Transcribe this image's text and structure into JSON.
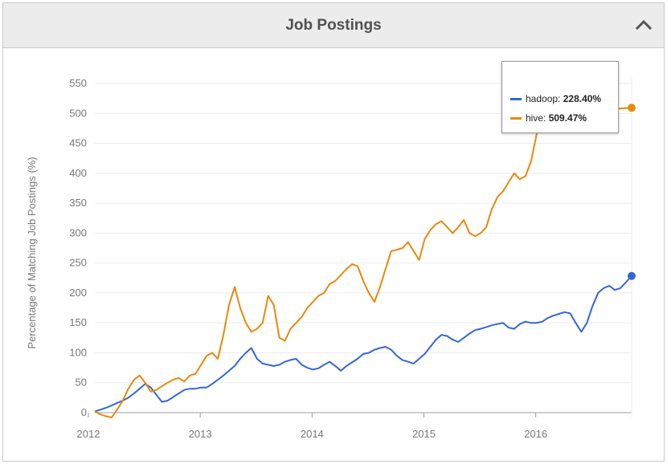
{
  "panel": {
    "title": "Job Postings",
    "collapse_icon": "chevron-up-icon"
  },
  "tooltip": {
    "rows": [
      {
        "name": "hadoop",
        "value": "228.40%",
        "color": "#3367d6"
      },
      {
        "name": "hive",
        "value": "509.47%",
        "color": "#e8890c"
      }
    ]
  },
  "chart_data": {
    "type": "line",
    "title": "",
    "xlabel": "",
    "ylabel": "Percentage of Matching Job Postings (%)",
    "ylim": [
      0,
      550
    ],
    "xlim": [
      2012.0,
      2016.8
    ],
    "yticks": [
      0,
      50,
      100,
      150,
      200,
      250,
      300,
      350,
      400,
      450,
      500,
      550
    ],
    "xticks": [
      2012,
      2013,
      2014,
      2015,
      2016
    ],
    "grid": true,
    "legend": "tooltip top-right",
    "series": [
      {
        "name": "hadoop",
        "color": "#3367d6",
        "x": [
          2012.0,
          2012.05,
          2012.1,
          2012.15,
          2012.2,
          2012.25,
          2012.3,
          2012.35,
          2012.4,
          2012.45,
          2012.5,
          2012.55,
          2012.6,
          2012.65,
          2012.7,
          2012.75,
          2012.8,
          2012.85,
          2012.9,
          2012.95,
          2013.0,
          2013.05,
          2013.1,
          2013.15,
          2013.2,
          2013.25,
          2013.3,
          2013.35,
          2013.4,
          2013.45,
          2013.5,
          2013.55,
          2013.6,
          2013.65,
          2013.7,
          2013.75,
          2013.8,
          2013.85,
          2013.9,
          2013.95,
          2014.0,
          2014.05,
          2014.1,
          2014.15,
          2014.2,
          2014.25,
          2014.3,
          2014.35,
          2014.4,
          2014.45,
          2014.5,
          2014.55,
          2014.6,
          2014.65,
          2014.7,
          2014.75,
          2014.8,
          2014.85,
          2014.9,
          2014.95,
          2015.0,
          2015.05,
          2015.1,
          2015.15,
          2015.2,
          2015.25,
          2015.3,
          2015.35,
          2015.4,
          2015.45,
          2015.5,
          2015.55,
          2015.6,
          2015.65,
          2015.7,
          2015.75,
          2015.8,
          2015.85,
          2015.9,
          2015.95,
          2016.0,
          2016.05,
          2016.1,
          2016.15,
          2016.2,
          2016.25,
          2016.3,
          2016.35,
          2016.4,
          2016.45,
          2016.5,
          2016.55,
          2016.6,
          2016.65,
          2016.7,
          2016.75,
          2016.8
        ],
        "values": [
          2,
          5,
          8,
          12,
          16,
          20,
          25,
          32,
          40,
          48,
          42,
          30,
          18,
          20,
          26,
          32,
          38,
          40,
          40,
          42,
          42,
          48,
          55,
          62,
          70,
          78,
          90,
          100,
          108,
          90,
          82,
          80,
          78,
          80,
          85,
          88,
          90,
          80,
          75,
          72,
          74,
          80,
          85,
          78,
          70,
          78,
          84,
          90,
          98,
          100,
          105,
          108,
          110,
          105,
          95,
          88,
          85,
          82,
          90,
          98,
          110,
          122,
          130,
          128,
          122,
          118,
          125,
          132,
          138,
          140,
          143,
          146,
          148,
          150,
          142,
          140,
          148,
          152,
          150,
          150,
          152,
          158,
          162,
          165,
          168,
          166,
          150,
          135,
          150,
          178,
          200,
          208,
          212,
          205,
          208,
          218,
          228.4
        ]
      },
      {
        "name": "hive",
        "color": "#e8890c",
        "x": [
          2012.0,
          2012.05,
          2012.1,
          2012.15,
          2012.2,
          2012.25,
          2012.3,
          2012.35,
          2012.4,
          2012.45,
          2012.5,
          2012.55,
          2012.6,
          2012.65,
          2012.7,
          2012.75,
          2012.8,
          2012.85,
          2012.9,
          2012.95,
          2013.0,
          2013.05,
          2013.1,
          2013.15,
          2013.2,
          2013.25,
          2013.3,
          2013.35,
          2013.4,
          2013.45,
          2013.5,
          2013.55,
          2013.6,
          2013.65,
          2013.7,
          2013.75,
          2013.8,
          2013.85,
          2013.9,
          2013.95,
          2014.0,
          2014.05,
          2014.1,
          2014.15,
          2014.2,
          2014.25,
          2014.3,
          2014.35,
          2014.4,
          2014.45,
          2014.5,
          2014.55,
          2014.6,
          2014.65,
          2014.7,
          2014.75,
          2014.8,
          2014.85,
          2014.9,
          2014.95,
          2015.0,
          2015.05,
          2015.1,
          2015.15,
          2015.2,
          2015.25,
          2015.3,
          2015.35,
          2015.4,
          2015.45,
          2015.5,
          2015.55,
          2015.6,
          2015.65,
          2015.7,
          2015.75,
          2015.8,
          2015.85,
          2015.9,
          2015.95,
          2016.0,
          2016.05,
          2016.1,
          2016.15,
          2016.2,
          2016.25,
          2016.3,
          2016.35,
          2016.4,
          2016.45,
          2016.5,
          2016.55,
          2016.6,
          2016.65,
          2016.7,
          2016.75,
          2016.8
        ],
        "values": [
          2,
          -3,
          -6,
          -8,
          5,
          20,
          40,
          55,
          62,
          50,
          35,
          38,
          44,
          50,
          55,
          58,
          52,
          62,
          65,
          80,
          95,
          100,
          90,
          130,
          180,
          210,
          175,
          150,
          135,
          140,
          150,
          195,
          180,
          125,
          120,
          140,
          150,
          160,
          175,
          185,
          195,
          200,
          215,
          220,
          230,
          240,
          248,
          245,
          220,
          200,
          185,
          210,
          240,
          270,
          272,
          275,
          285,
          270,
          255,
          290,
          305,
          315,
          320,
          310,
          300,
          310,
          322,
          300,
          295,
          300,
          310,
          340,
          360,
          370,
          385,
          400,
          390,
          395,
          420,
          465,
          510,
          480,
          470,
          490,
          495,
          500,
          505,
          500,
          498,
          502,
          505,
          506,
          507,
          508,
          508,
          509,
          509.47
        ]
      }
    ]
  }
}
